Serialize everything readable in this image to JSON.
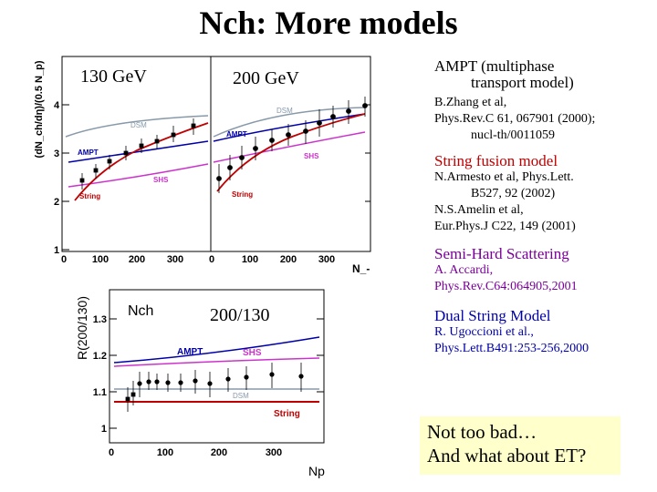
{
  "title": "Nch: More models",
  "top_panel": {
    "ylabel": "(dN_ch/dη)/(0.5 N_p)",
    "left_energy": "130 GeV",
    "right_energy": "200 GeV",
    "xlabel": "N_-",
    "yticks": [
      "1",
      "2",
      "3",
      "4"
    ],
    "xticks": [
      "0",
      "100",
      "200",
      "300"
    ],
    "curve_labels": {
      "dsm": "DSM",
      "ampt": "AMPT",
      "shs": "SHS",
      "string": "String"
    }
  },
  "bottom_panel": {
    "ylabel": "R(200/130)",
    "corner_label": "Nch",
    "ratio_label": "200/130",
    "xlabel": "Np",
    "yticks": [
      "1",
      "1.1",
      "1.2",
      "1.3"
    ],
    "xticks": [
      "0",
      "100",
      "200",
      "300"
    ],
    "curve_labels": {
      "ampt": "AMPT",
      "shs": "SHS",
      "dsm": "DSM",
      "string": "String"
    }
  },
  "models": [
    {
      "name": "AMPT (multiphase",
      "name2": "transport model)",
      "refs": [
        "B.Zhang et al,",
        "Phys.Rev.C 61, 067901 (2000);",
        "nucl-th/0011059"
      ]
    },
    {
      "name": "String fusion model",
      "refs": [
        "N.Armesto et al, Phys.Lett.",
        "B527, 92 (2002)",
        "N.S.Amelin et al,",
        "Eur.Phys.J C22, 149 (2001)"
      ]
    },
    {
      "name": "Semi-Hard Scattering",
      "refs": [
        "A. Accardi,",
        "Phys.Rev.C64:064905,2001"
      ]
    },
    {
      "name": "Dual String Model",
      "refs": [
        "R. Ugoccioni et al.,",
        "Phys.Lett.B491:253-256,2000"
      ]
    }
  ],
  "note": {
    "line1": "Not too bad…",
    "line2": "And what about ET?"
  },
  "colors": {
    "red": "#c00000",
    "blue": "#0000aa",
    "purple": "#cc33cc",
    "grey": "#8899aa",
    "note_bg": "#ffffcc"
  }
}
